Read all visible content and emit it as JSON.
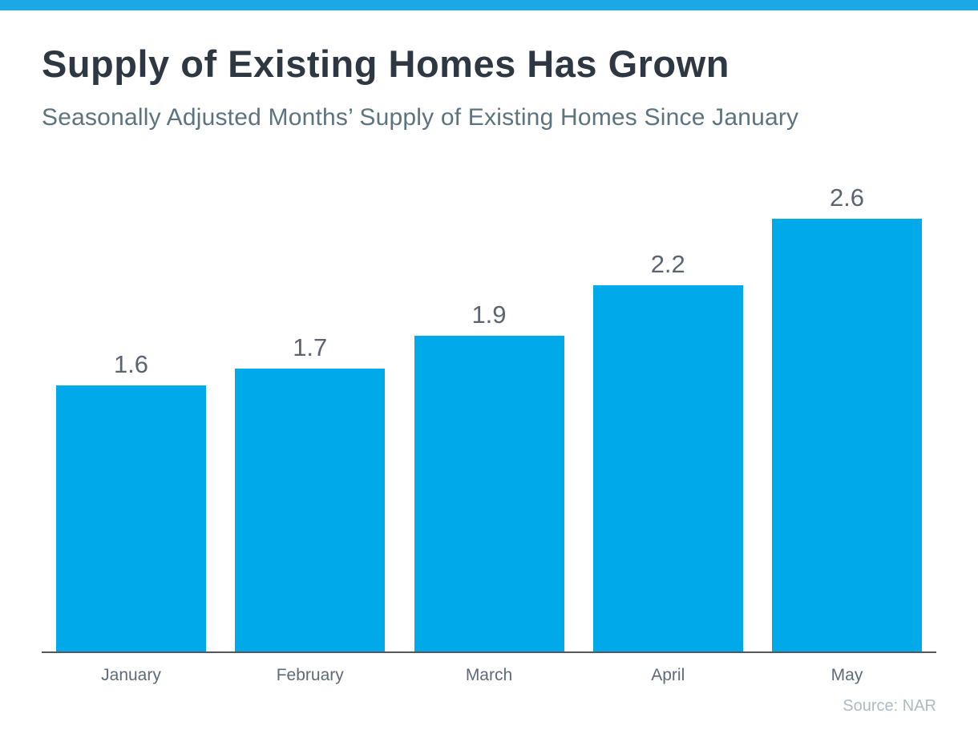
{
  "page": {
    "background_color": "#ffffff",
    "top_strip_color": "#1BA8E4"
  },
  "header": {
    "title": "Supply of Existing Homes Has Grown",
    "subtitle": "Seasonally Adjusted Months’ Supply of Existing Homes Since January"
  },
  "footer": {
    "source": "Source: NAR"
  },
  "chart_data": {
    "type": "bar",
    "title": "Supply of Existing Homes Has Grown",
    "subtitle": "Seasonally Adjusted Months’ Supply of Existing Homes Since January",
    "categories": [
      "January",
      "February",
      "March",
      "April",
      "May"
    ],
    "values": [
      1.6,
      1.7,
      1.9,
      2.2,
      2.6
    ],
    "data_labels": [
      "1.6",
      "1.7",
      "1.9",
      "2.2",
      "2.6"
    ],
    "xlabel": "",
    "ylabel": "",
    "ylim": [
      0,
      2.8
    ],
    "grid": false,
    "legend": false,
    "bar_color": "#00A9E9",
    "value_label_color": "#5B6470",
    "category_label_color": "#5C6B7A",
    "axis_line_color": "#54575B",
    "source": "Source: NAR"
  }
}
